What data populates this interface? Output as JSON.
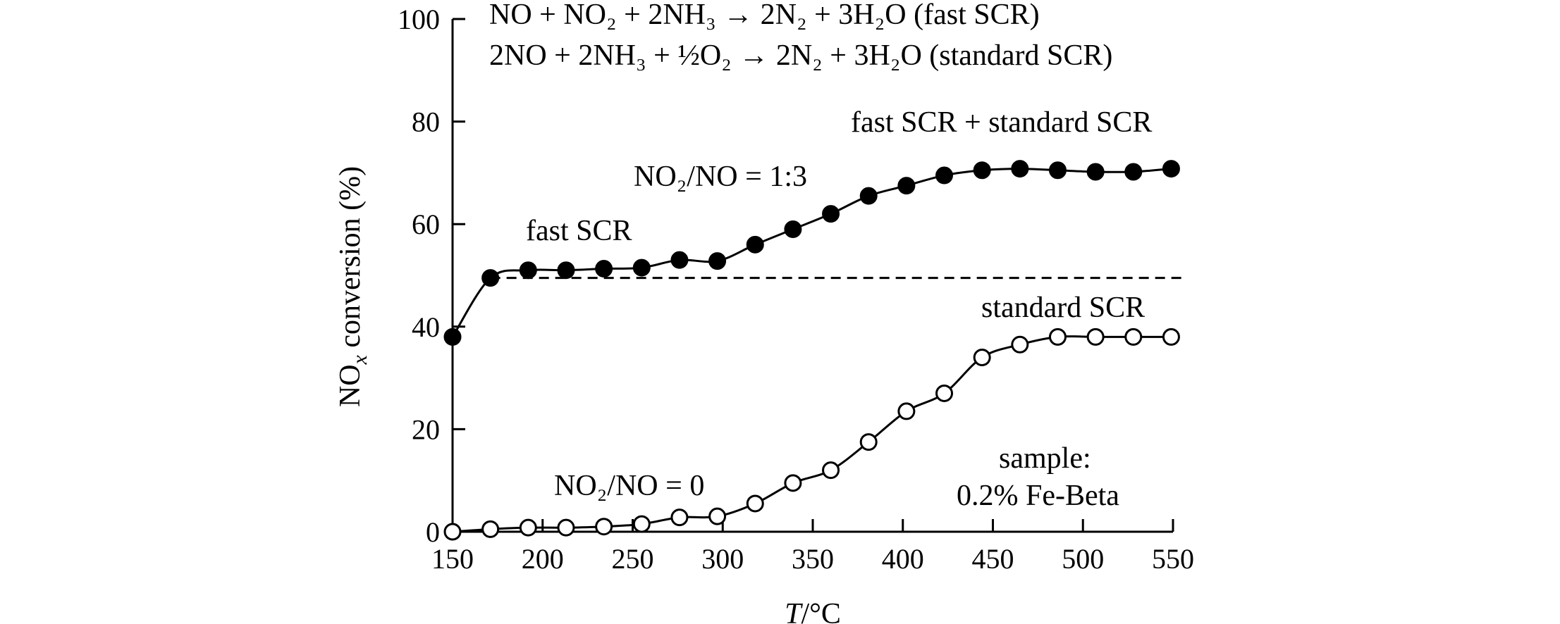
{
  "chart_data": {
    "type": "line",
    "title": "",
    "xlabel": {
      "variable": "T",
      "unit": "/°C"
    },
    "ylabel": {
      "prefix": "NO",
      "subscript": "x",
      "suffix": " conversion (%)"
    },
    "xlim": [
      150,
      550
    ],
    "ylim": [
      0,
      100
    ],
    "xticks": [
      150,
      200,
      250,
      300,
      350,
      400,
      450,
      500,
      550
    ],
    "yticks": [
      0,
      20,
      40,
      60,
      80,
      100
    ],
    "x": [
      150,
      171,
      192,
      213,
      234,
      255,
      276,
      297,
      318,
      339,
      360,
      381,
      402,
      423,
      444,
      465,
      486,
      507,
      528,
      549
    ],
    "series": [
      {
        "name": "NO2/NO = 1:3",
        "marker": "filled-circle",
        "color": "#000000",
        "values": [
          38,
          49.5,
          51,
          51,
          51.3,
          51.5,
          53,
          52.8,
          56,
          59,
          62,
          65.5,
          67.5,
          69.5,
          70.5,
          70.8,
          70.5,
          70.2,
          70.2,
          70.8
        ]
      },
      {
        "name": "NO2/NO = 0",
        "marker": "open-circle",
        "color": "#000000",
        "values": [
          0,
          0.5,
          0.8,
          0.8,
          1,
          1.5,
          2.8,
          3,
          5.5,
          9.5,
          12,
          17.5,
          23.5,
          27,
          34,
          36.5,
          38,
          38,
          38,
          38
        ]
      }
    ],
    "reference_line": {
      "name": "fast SCR limit",
      "value": 49.5,
      "style": "dashed"
    },
    "annotations": {
      "equation_fast": {
        "text": "NO + NO₂ + 2NH₃ → 2N₂ + 3H₂O (fast SCR)"
      },
      "equation_standard": {
        "text": "2NO + 2NH₃ + ½O₂ → 2N₂ + 3H₂O (standard SCR)"
      },
      "fast_plus_standard": "fast SCR + standard SCR",
      "ratio_13": "NO₂/NO = 1:3",
      "fast_scr": "fast SCR",
      "standard_scr": "standard SCR",
      "ratio_0": "NO₂/NO = 0",
      "sample_line1": "sample:",
      "sample_line2": "0.2% Fe-Beta"
    }
  }
}
